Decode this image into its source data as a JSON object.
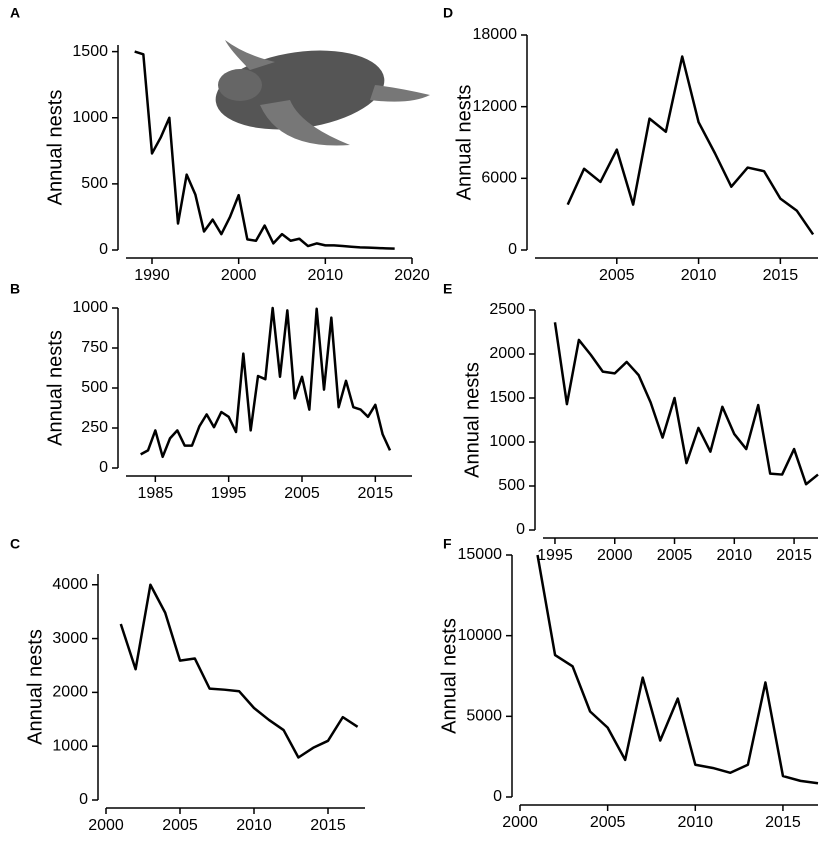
{
  "chart_data": [
    {
      "type": "line",
      "label": "A",
      "ylabel": "Annual nests",
      "color": "#000000",
      "x": [
        1988,
        1989,
        1990,
        1991,
        1992,
        1993,
        1994,
        1995,
        1996,
        1997,
        1998,
        1999,
        2000,
        2001,
        2002,
        2003,
        2004,
        2005,
        2006,
        2007,
        2008,
        2009,
        2010,
        2011,
        2012,
        2013,
        2014,
        2015,
        2016,
        2017,
        2018
      ],
      "values": [
        1500,
        1480,
        730,
        850,
        1000,
        200,
        570,
        420,
        140,
        230,
        120,
        250,
        415,
        80,
        70,
        185,
        50,
        120,
        70,
        85,
        30,
        50,
        35,
        35,
        30,
        25,
        20,
        18,
        15,
        12,
        10
      ],
      "xlim": [
        1987,
        2020
      ],
      "ylim": [
        0,
        1550
      ],
      "xticks": [
        1990,
        2000,
        2010,
        2020
      ],
      "yticks": [
        0,
        500,
        1000,
        1500
      ]
    },
    {
      "type": "line",
      "label": "B",
      "ylabel": "Annual nests",
      "color": "#000000",
      "x": [
        1983,
        1984,
        1985,
        1986,
        1987,
        1988,
        1989,
        1990,
        1991,
        1992,
        1993,
        1994,
        1995,
        1996,
        1997,
        1998,
        1999,
        2000,
        2001,
        2002,
        2003,
        2004,
        2005,
        2006,
        2007,
        2008,
        2009,
        2010,
        2011,
        2012,
        2013,
        2014,
        2015,
        2016,
        2017
      ],
      "values": [
        85,
        110,
        235,
        70,
        185,
        235,
        140,
        140,
        260,
        335,
        255,
        350,
        320,
        225,
        715,
        235,
        575,
        555,
        1000,
        570,
        985,
        435,
        570,
        365,
        995,
        490,
        940,
        380,
        545,
        380,
        365,
        320,
        395,
        210,
        110
      ],
      "xlim": [
        1981,
        2020
      ],
      "ylim": [
        0,
        1000
      ],
      "xticks": [
        1985,
        1995,
        2005,
        2015
      ],
      "yticks": [
        0,
        250,
        500,
        750,
        1000
      ]
    },
    {
      "type": "line",
      "label": "C",
      "ylabel": "Annual nests",
      "color": "#000000",
      "x": [
        2001,
        2002,
        2003,
        2004,
        2005,
        2006,
        2007,
        2008,
        2009,
        2010,
        2011,
        2012,
        2013,
        2014,
        2015,
        2016,
        2017
      ],
      "values": [
        3270,
        2430,
        4000,
        3480,
        2590,
        2630,
        2070,
        2050,
        2020,
        1710,
        1490,
        1300,
        790,
        970,
        1100,
        1540,
        1360
      ],
      "xlim": [
        2000,
        2017.5
      ],
      "ylim": [
        0,
        4200
      ],
      "xticks": [
        2000,
        2005,
        2010,
        2015
      ],
      "yticks": [
        0,
        1000,
        2000,
        3000,
        4000
      ]
    },
    {
      "type": "line",
      "label": "D",
      "ylabel": "Annual nests",
      "color": "#000000",
      "x": [
        2002,
        2003,
        2004,
        2005,
        2006,
        2007,
        2008,
        2009,
        2010,
        2011,
        2012,
        2013,
        2014,
        2015,
        2016,
        2017
      ],
      "values": [
        3800,
        6800,
        5700,
        8400,
        3800,
        11000,
        9900,
        16200,
        10700,
        8100,
        5300,
        6900,
        6600,
        4300,
        3300,
        1300
      ],
      "xlim": [
        2000,
        2017.3
      ],
      "ylim": [
        0,
        18000
      ],
      "xticks": [
        2005,
        2010,
        2015
      ],
      "yticks": [
        0,
        6000,
        12000,
        18000
      ]
    },
    {
      "type": "line",
      "label": "E",
      "ylabel": "Annual nests",
      "color": "#000000",
      "x": [
        1995,
        1996,
        1997,
        1998,
        1999,
        2000,
        2001,
        2002,
        2003,
        2004,
        2005,
        2006,
        2007,
        2008,
        2009,
        2010,
        2011,
        2012,
        2013,
        2014,
        2015,
        2016,
        2017
      ],
      "values": [
        2360,
        1430,
        2160,
        1990,
        1800,
        1780,
        1910,
        1760,
        1450,
        1050,
        1500,
        760,
        1160,
        890,
        1400,
        1090,
        920,
        1420,
        640,
        630,
        920,
        520,
        630
      ],
      "xlim": [
        1994,
        2017
      ],
      "ylim": [
        0,
        2500
      ],
      "xticks": [
        1995,
        2000,
        2005,
        2010,
        2015
      ],
      "yticks": [
        0,
        500,
        1000,
        1500,
        2000,
        2500
      ]
    },
    {
      "type": "line",
      "label": "F",
      "ylabel": "Annual nests",
      "color": "#000000",
      "x": [
        2001,
        2002,
        2003,
        2004,
        2005,
        2006,
        2007,
        2008,
        2009,
        2010,
        2011,
        2012,
        2013,
        2014,
        2015,
        2016,
        2017
      ],
      "values": [
        15000,
        8800,
        8100,
        5300,
        4300,
        2300,
        7400,
        3500,
        6100,
        2000,
        1800,
        1500,
        2000,
        7100,
        1300,
        1000,
        850
      ],
      "xlim": [
        2000,
        2017
      ],
      "ylim": [
        0,
        15000
      ],
      "xticks": [
        2000,
        2005,
        2010,
        2015
      ],
      "yticks": [
        0,
        5000,
        10000,
        15000
      ]
    }
  ]
}
